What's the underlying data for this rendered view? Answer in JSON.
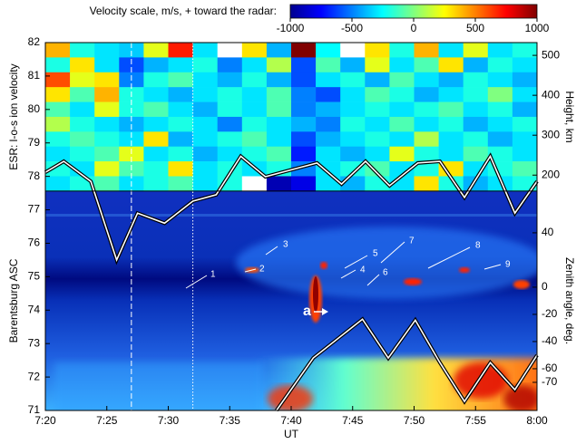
{
  "chart_data": {
    "type": "heatmap-keogram",
    "colorbar": {
      "title": "Velocity scale, m/s, + toward the radar:",
      "lim": [
        -1000,
        1000
      ],
      "ticks": [
        -1000,
        -500,
        0,
        500,
        1000
      ],
      "colormap": "jet"
    },
    "xlabel": "UT",
    "xlim": [
      0,
      40
    ],
    "xticks": [
      {
        "value": 0,
        "label": "7:20"
      },
      {
        "value": 5,
        "label": "7:25"
      },
      {
        "value": 10,
        "label": "7:30"
      },
      {
        "value": 15,
        "label": "7:35"
      },
      {
        "value": 20,
        "label": "7:40"
      },
      {
        "value": 25,
        "label": "7:45"
      },
      {
        "value": 30,
        "label": "7:50"
      },
      {
        "value": 35,
        "label": "7:55"
      },
      {
        "value": 40,
        "label": "8:00"
      }
    ],
    "ylim": [
      71,
      82
    ],
    "yticks": [
      71,
      72,
      73,
      74,
      75,
      76,
      77,
      78,
      79,
      80,
      81,
      82
    ],
    "top_ylabel": "ESR: l-o-s ion velocity",
    "bottom_ylabel": "Barentsburg ASC",
    "height_axis": {
      "label": "Height, km",
      "lim": [
        160,
        532
      ],
      "ticks": [
        200,
        300,
        400,
        500
      ]
    },
    "zenith_axis": {
      "label": "Zenith angle, deg.",
      "lim": [
        -90.7,
        70.7
      ],
      "ticks": [
        40,
        0,
        -20,
        -40,
        -60,
        -70
      ]
    },
    "heatmap": {
      "x_bins": [
        0,
        2,
        4,
        6,
        8,
        10,
        12,
        14,
        16,
        18,
        20,
        22,
        24,
        26,
        28,
        30,
        32,
        34,
        36,
        38,
        40
      ],
      "y_bins": [
        82,
        81.556,
        81.112,
        80.668,
        80.224,
        79.78,
        79.336,
        78.892,
        78.448,
        78.004,
        77.56
      ],
      "values": [
        [
          400,
          -200,
          -300,
          -350,
          200,
          700,
          -300,
          null,
          300,
          -400,
          1000,
          -250,
          null,
          300,
          -200,
          400,
          -300,
          200,
          -300,
          -200
        ],
        [
          -200,
          300,
          -300,
          -600,
          -400,
          -300,
          -200,
          -500,
          -300,
          100,
          -600,
          -100,
          -400,
          200,
          -300,
          -100,
          300,
          -400,
          -200,
          -300
        ],
        [
          600,
          200,
          300,
          -500,
          -200,
          -100,
          -300,
          -400,
          -200,
          -400,
          -600,
          -300,
          -200,
          -400,
          -100,
          -300,
          -400,
          -200,
          -300,
          -400
        ],
        [
          300,
          -100,
          400,
          -200,
          -300,
          -400,
          -300,
          -200,
          -300,
          -100,
          -500,
          -600,
          -300,
          -100,
          -200,
          -400,
          -300,
          -200,
          0,
          -300
        ],
        [
          -100,
          -300,
          200,
          -200,
          -100,
          -300,
          -400,
          -200,
          -300,
          -100,
          -500,
          -400,
          -300,
          -200,
          -300,
          -200,
          -100,
          -300,
          -200,
          -400
        ],
        [
          100,
          -200,
          -300,
          -400,
          -300,
          -200,
          -300,
          -500,
          -200,
          -300,
          -400,
          -500,
          -200,
          -300,
          -100,
          -300,
          -200,
          -400,
          -300,
          -200
        ],
        [
          -200,
          -100,
          -200,
          -300,
          300,
          -400,
          -300,
          -200,
          -100,
          -300,
          -600,
          -400,
          -300,
          -200,
          -300,
          100,
          -300,
          -200,
          -400,
          -300
        ],
        [
          -300,
          -200,
          -100,
          200,
          -300,
          -200,
          -400,
          -300,
          -200,
          -100,
          -700,
          -300,
          -400,
          -300,
          200,
          -200,
          -300,
          -100,
          -200,
          -300
        ],
        [
          -200,
          -300,
          200,
          -100,
          -200,
          300,
          -300,
          -200,
          -300,
          -200,
          -500,
          -300,
          -200,
          -100,
          -300,
          -200,
          300,
          -300,
          -200,
          -100
        ],
        [
          -300,
          -200,
          -100,
          -300,
          -200,
          -100,
          -300,
          -200,
          null,
          -900,
          -800,
          -300,
          -400,
          -200,
          -300,
          300,
          -200,
          -400,
          -300,
          -200
        ]
      ]
    },
    "lines": [
      {
        "x": [
          0,
          1.5,
          3.7,
          5.8,
          7.5,
          9.7,
          12.0,
          13.9,
          15.9,
          17.9,
          22.1,
          24.1,
          26.05,
          28.0,
          30.3,
          32.1,
          34.1,
          36.2,
          38.2,
          40
        ],
        "y": [
          78.12,
          78.45,
          77.85,
          75.5,
          76.9,
          76.6,
          77.26,
          77.45,
          78.6,
          77.99,
          78.4,
          77.77,
          78.45,
          77.72,
          78.4,
          78.45,
          77.37,
          78.6,
          76.9,
          77.85
        ]
      },
      {
        "x": [
          18.8,
          21.8,
          25.8,
          27.9,
          30.1,
          32.1,
          34.1,
          36.2,
          38.2,
          40
        ],
        "y": [
          71.0,
          72.57,
          73.73,
          72.57,
          73.7,
          72.43,
          71.27,
          72.43,
          71.62,
          72.65
        ]
      }
    ],
    "vlines": [
      {
        "x": 7.0,
        "style": "dashed"
      },
      {
        "x": 12.0,
        "style": "dotted"
      }
    ],
    "annotations": [
      "1",
      "2",
      "3",
      "4",
      "5",
      "6",
      "7",
      "8",
      "9",
      "a"
    ]
  }
}
